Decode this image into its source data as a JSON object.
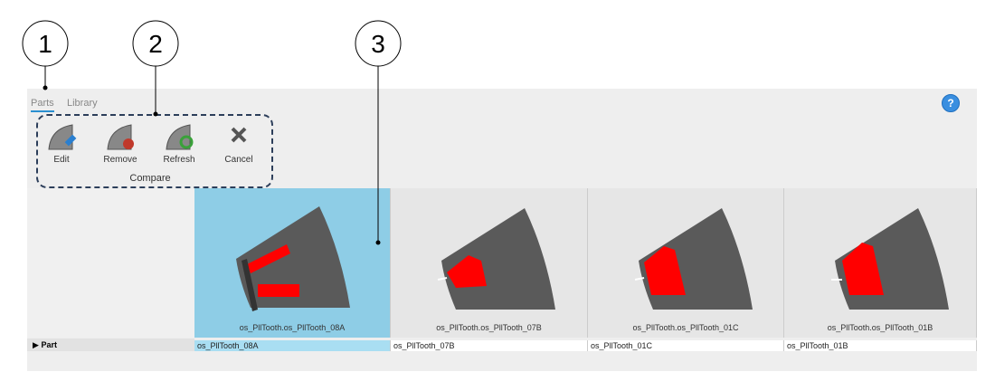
{
  "callouts": [
    "1",
    "2",
    "3"
  ],
  "tabs": [
    "Parts",
    "Library"
  ],
  "help": "?",
  "toolbar": {
    "buttons": [
      "Edit",
      "Remove",
      "Refresh",
      "Cancel"
    ],
    "group": "Compare"
  },
  "cards": [
    {
      "caption": "os_PllTooth.os_PllTooth_08A"
    },
    {
      "caption": "os_PllTooth.os_PllTooth_07B"
    },
    {
      "caption": "os_PllTooth.os_PllTooth_01C"
    },
    {
      "caption": "os_PllTooth.os_PllTooth_01B"
    }
  ],
  "table": {
    "row_label": "Part",
    "cells": [
      "os_PllTooth_08A",
      "os_PllTooth_07B",
      "os_PllTooth_01C",
      "os_PllTooth_01B"
    ]
  }
}
